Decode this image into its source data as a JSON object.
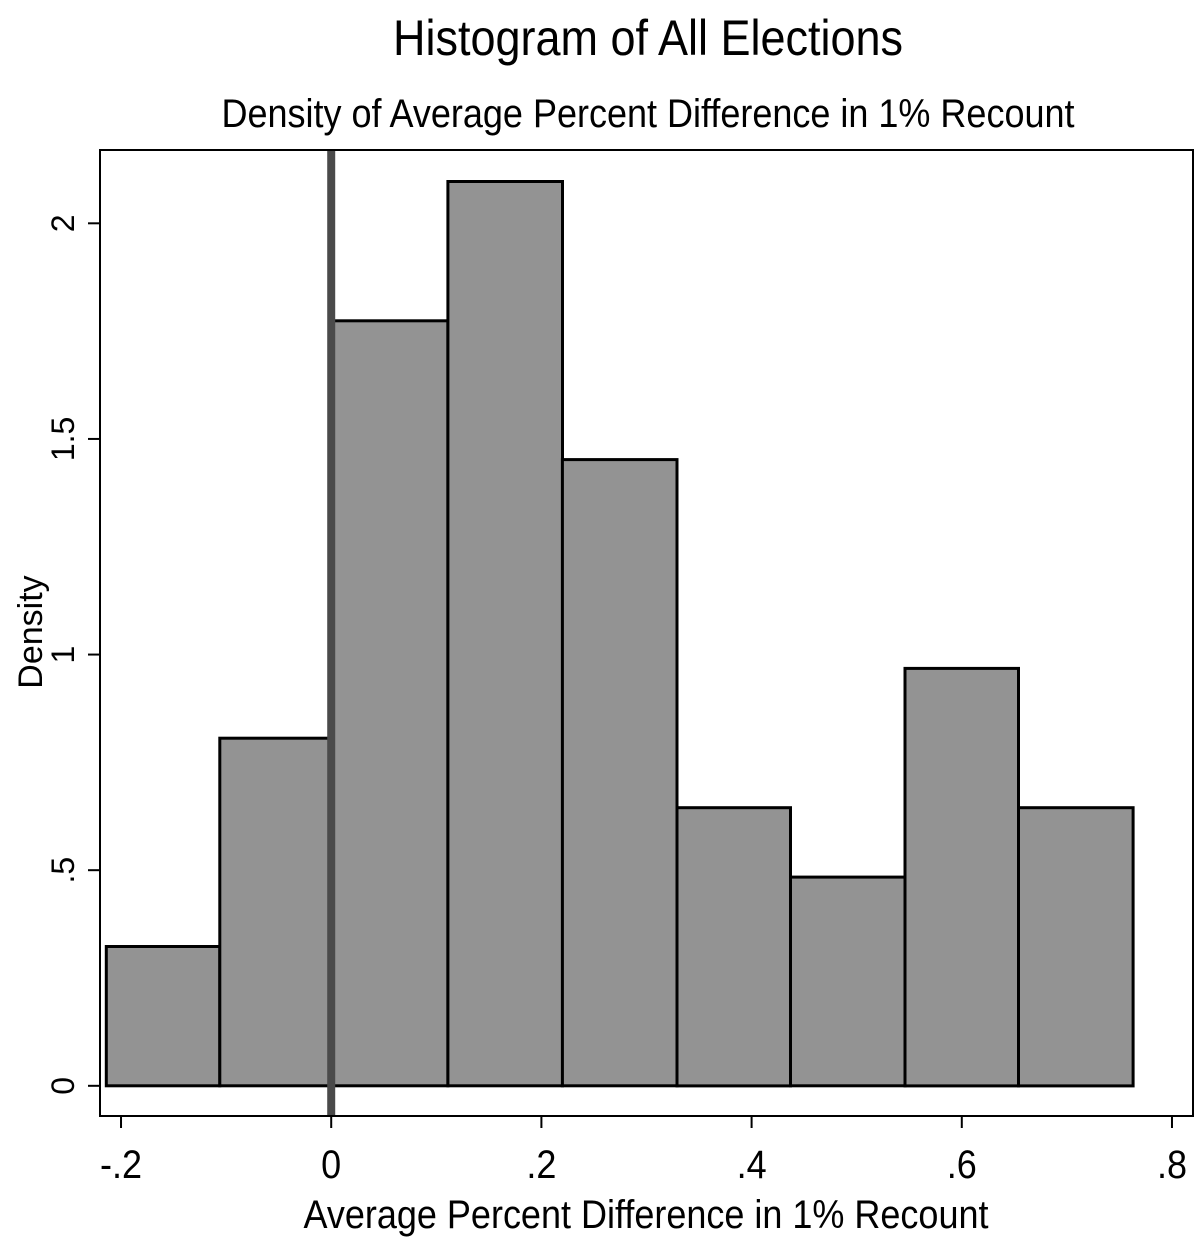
{
  "chart_data": {
    "type": "bar",
    "title": "Histogram of All Elections",
    "subtitle": "Density of Average Percent Difference in 1% Recount",
    "xlabel": "Average Percent Difference in 1% Recount",
    "ylabel": "Density",
    "xlim": [
      -0.22,
      0.82
    ],
    "ylim": [
      -0.07,
      2.17
    ],
    "x_ticks": [
      -0.2,
      0,
      0.2,
      0.4,
      0.6,
      0.8
    ],
    "x_tick_labels": [
      "-.2",
      "0",
      ".2",
      ".4",
      ".6",
      ".8"
    ],
    "y_ticks": [
      0,
      0.5,
      1,
      1.5,
      2
    ],
    "y_tick_labels": [
      "0",
      ".5",
      "1",
      "1.5",
      "2"
    ],
    "bins": [
      {
        "x0": -0.214,
        "x1": -0.106,
        "density": 0.323
      },
      {
        "x0": -0.106,
        "x1": 0.002,
        "density": 0.806
      },
      {
        "x0": 0.002,
        "x1": 0.111,
        "density": 1.774
      },
      {
        "x0": 0.111,
        "x1": 0.22,
        "density": 2.097
      },
      {
        "x0": 0.22,
        "x1": 0.329,
        "density": 1.452
      },
      {
        "x0": 0.329,
        "x1": 0.437,
        "density": 0.645
      },
      {
        "x0": 0.437,
        "x1": 0.546,
        "density": 0.484
      },
      {
        "x0": 0.546,
        "x1": 0.654,
        "density": 0.968
      },
      {
        "x0": 0.654,
        "x1": 0.763,
        "density": 0.645
      }
    ],
    "reference_line_x": 0,
    "colors": {
      "bar_fill": "#939393",
      "bar_stroke": "#000000",
      "reference_line": "#4a4a4a",
      "axis": "#000000",
      "background": "#ffffff"
    },
    "grid": false,
    "legend": "none"
  }
}
